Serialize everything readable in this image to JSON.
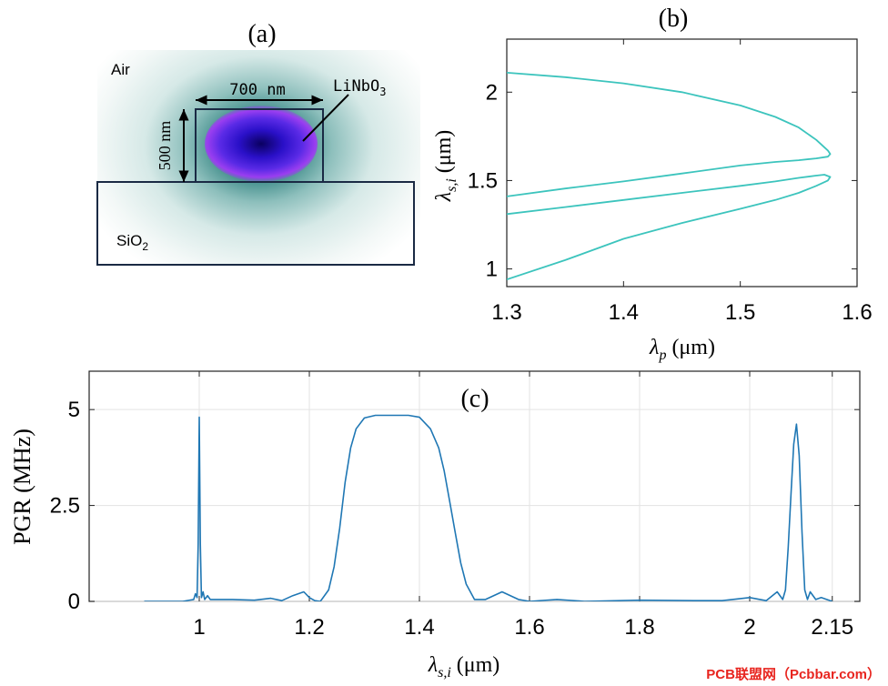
{
  "panels": {
    "a": {
      "label": "(a)",
      "air_label": "Air",
      "core_label": "LiNbO",
      "core_sub": "3",
      "substrate_label": "SiO",
      "substrate_sub": "2",
      "width_label": "700 nm",
      "height_label": "500 nm"
    },
    "b": {
      "label": "(b)"
    },
    "c": {
      "label": "(c)"
    }
  },
  "watermark": "PCB联盟网（Pcbbar.com）",
  "colors": {
    "panel_b_line": "#3cc4bd",
    "panel_c_line": "#1f77b4",
    "watermark": "#e8251f"
  },
  "chart_data": [
    {
      "type": "line",
      "panel": "b",
      "xlabel_base": "λ",
      "xlabel_sub": "p",
      "xlabel_unit": " (μm)",
      "ylabel_base": "λ",
      "ylabel_sub": "s,i",
      "ylabel_unit": " (μm)",
      "xlim": [
        1.3,
        1.6
      ],
      "ylim": [
        0.9,
        2.3
      ],
      "xticks": [
        "1.3",
        "1.4",
        "1.5",
        "1.6"
      ],
      "xtick_values": [
        1.3,
        1.4,
        1.5,
        1.6
      ],
      "yticks": [
        "1",
        "1.5",
        "2"
      ],
      "ytick_values": [
        1,
        1.5,
        2
      ],
      "grid": false,
      "series": [
        {
          "x": [
            1.3,
            1.35,
            1.4,
            1.45,
            1.5,
            1.53,
            1.55,
            1.565,
            1.575,
            1.577,
            1.575,
            1.565,
            1.55,
            1.53,
            1.5,
            1.45,
            1.4,
            1.35,
            1.3
          ],
          "y": [
            2.11,
            2.085,
            2.05,
            2.0,
            1.925,
            1.86,
            1.8,
            1.73,
            1.67,
            1.65,
            1.635,
            1.625,
            1.615,
            1.605,
            1.585,
            1.54,
            1.495,
            1.455,
            1.41
          ]
        },
        {
          "x": [
            1.3,
            1.35,
            1.4,
            1.45,
            1.5,
            1.53,
            1.55,
            1.565,
            1.572,
            1.577,
            1.575,
            1.565,
            1.55,
            1.53,
            1.5,
            1.45,
            1.4,
            1.35,
            1.3
          ],
          "y": [
            1.31,
            1.35,
            1.39,
            1.43,
            1.47,
            1.495,
            1.515,
            1.528,
            1.533,
            1.52,
            1.5,
            1.47,
            1.43,
            1.39,
            1.34,
            1.26,
            1.17,
            1.05,
            0.94
          ]
        }
      ]
    },
    {
      "type": "line",
      "panel": "c",
      "xlabel_base": "λ",
      "xlabel_sub": "s,i",
      "xlabel_unit": " (μm)",
      "ylabel": "PGR (MHz)",
      "xlim": [
        0.8,
        2.2
      ],
      "ylim": [
        0,
        6
      ],
      "xticks": [
        "1",
        "1.2",
        "1.4",
        "1.6",
        "1.8",
        "2",
        "2.15"
      ],
      "xtick_values": [
        1.0,
        1.2,
        1.4,
        1.6,
        1.8,
        2.0,
        2.15
      ],
      "yticks": [
        "0",
        "2.5",
        "5"
      ],
      "ytick_values": [
        0,
        2.5,
        5
      ],
      "grid": true,
      "series": [
        {
          "x": [
            0.9,
            0.97,
            0.99,
            0.993,
            0.996,
            0.998,
            1.0,
            1.002,
            1.004,
            1.007,
            1.01,
            1.015,
            1.02,
            1.04,
            1.06,
            1.1,
            1.13,
            1.15,
            1.17,
            1.19,
            1.2,
            1.21,
            1.22,
            1.235,
            1.245,
            1.255,
            1.265,
            1.275,
            1.285,
            1.3,
            1.32,
            1.35,
            1.38,
            1.4,
            1.42,
            1.435,
            1.445,
            1.455,
            1.465,
            1.475,
            1.485,
            1.5,
            1.52,
            1.55,
            1.58,
            1.6,
            1.65,
            1.7,
            1.8,
            1.9,
            1.95,
            2.0,
            2.03,
            2.05,
            2.06,
            2.065,
            2.07,
            2.075,
            2.08,
            2.085,
            2.09,
            2.095,
            2.1,
            2.105,
            2.11,
            2.12,
            2.13,
            2.15
          ],
          "y": [
            0,
            0,
            0.05,
            0.2,
            0.1,
            1.5,
            4.8,
            1.5,
            0.1,
            0.25,
            0.05,
            0.15,
            0.05,
            0.05,
            0.05,
            0.03,
            0.08,
            0.02,
            0.15,
            0.25,
            0.1,
            0.02,
            0.0,
            0.3,
            0.9,
            1.9,
            3.1,
            4.0,
            4.5,
            4.78,
            4.85,
            4.85,
            4.85,
            4.8,
            4.5,
            4.0,
            3.4,
            2.6,
            1.8,
            1.0,
            0.45,
            0.05,
            0.05,
            0.25,
            0.05,
            0.0,
            0.05,
            0.0,
            0.03,
            0.02,
            0.02,
            0.1,
            0.02,
            0.25,
            0.05,
            0.3,
            1.4,
            2.8,
            4.1,
            4.62,
            3.8,
            1.8,
            0.3,
            0.05,
            0.25,
            0.05,
            0.1,
            0.0
          ]
        }
      ]
    }
  ]
}
